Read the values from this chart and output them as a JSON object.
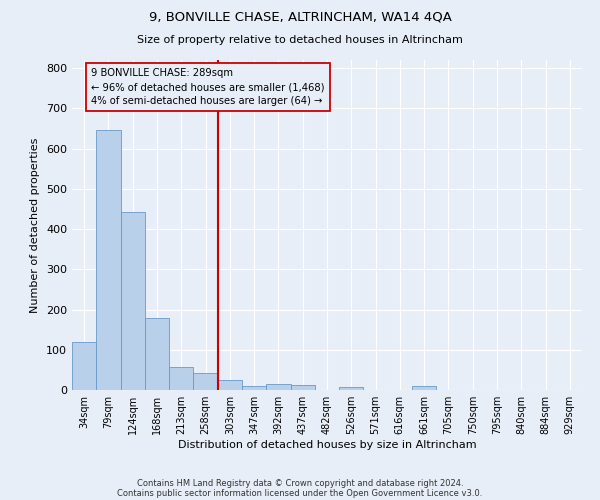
{
  "title": "9, BONVILLE CHASE, ALTRINCHAM, WA14 4QA",
  "subtitle": "Size of property relative to detached houses in Altrincham",
  "xlabel": "Distribution of detached houses by size in Altrincham",
  "ylabel": "Number of detached properties",
  "footnote1": "Contains HM Land Registry data © Crown copyright and database right 2024.",
  "footnote2": "Contains public sector information licensed under the Open Government Licence v3.0.",
  "bin_labels": [
    "34sqm",
    "79sqm",
    "124sqm",
    "168sqm",
    "213sqm",
    "258sqm",
    "303sqm",
    "347sqm",
    "392sqm",
    "437sqm",
    "482sqm",
    "526sqm",
    "571sqm",
    "616sqm",
    "661sqm",
    "705sqm",
    "750sqm",
    "795sqm",
    "840sqm",
    "884sqm",
    "929sqm"
  ],
  "bar_heights": [
    120,
    645,
    443,
    180,
    58,
    43,
    25,
    11,
    15,
    12,
    0,
    8,
    0,
    0,
    10,
    0,
    0,
    0,
    0,
    0,
    0
  ],
  "bar_color": "#b8d0ea",
  "bar_edge_color": "#6699cc",
  "vline_x_index": 6,
  "annotation_title": "9 BONVILLE CHASE: 289sqm",
  "annotation_line1": "← 96% of detached houses are smaller (1,468)",
  "annotation_line2": "4% of semi-detached houses are larger (64) →",
  "vline_color": "#cc0000",
  "annotation_box_color": "#cc0000",
  "ylim": [
    0,
    820
  ],
  "yticks": [
    0,
    100,
    200,
    300,
    400,
    500,
    600,
    700,
    800
  ],
  "background_color": "#e8eef8",
  "grid_color": "#ffffff"
}
